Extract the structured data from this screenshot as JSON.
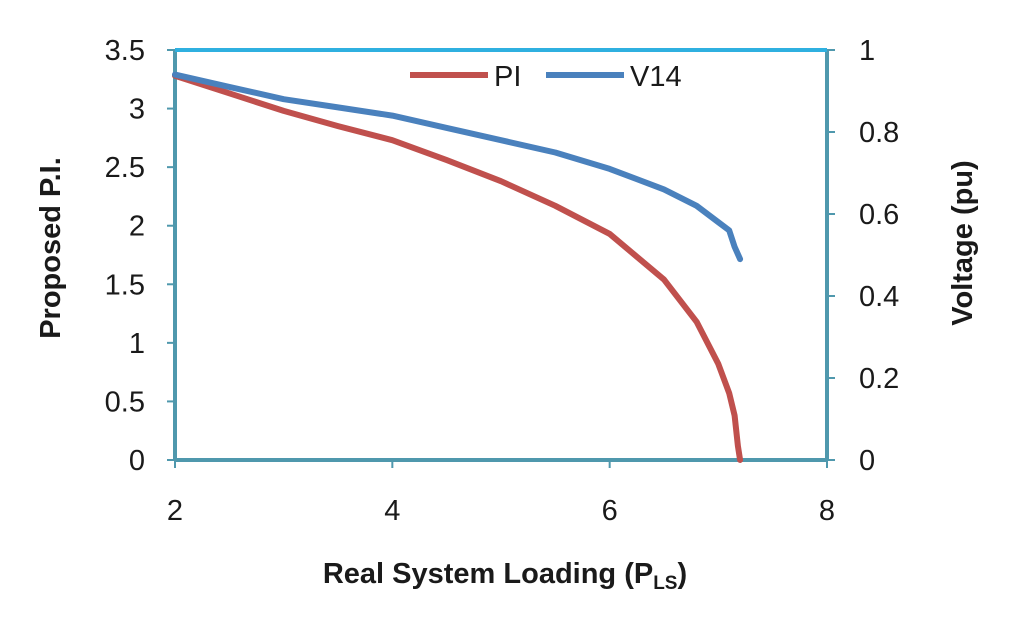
{
  "chart_data": {
    "type": "line",
    "title": "",
    "xlabel": "Real System Loading (P",
    "xlabel_sub": "LS",
    "xlabel_suffix": ")",
    "ylabel_left": "Proposed P.I.",
    "ylabel_right": "Voltage (pu)",
    "xlim": [
      2,
      8
    ],
    "ylim_left": [
      0,
      3.5
    ],
    "ylim_right": [
      0,
      1
    ],
    "x_ticks": [
      "2",
      "4",
      "6",
      "8"
    ],
    "y_left_ticks": [
      "0",
      "0.5",
      "1",
      "1.5",
      "2",
      "2.5",
      "3",
      "3.5"
    ],
    "y_right_ticks": [
      "0",
      "0.2",
      "0.4",
      "0.6",
      "0.8",
      "1"
    ],
    "grid": false,
    "legend_position": "top-center",
    "colors": {
      "frame": "#4f98ad",
      "top_edge": "#2fb0e0",
      "PI": "#c0504d",
      "V14": "#4a81bd"
    },
    "series": [
      {
        "name": "PI",
        "axis": "left",
        "color": "#c0504d",
        "points": [
          [
            2.0,
            3.28
          ],
          [
            2.5,
            3.13
          ],
          [
            3.0,
            2.98
          ],
          [
            3.5,
            2.85
          ],
          [
            4.0,
            2.73
          ],
          [
            4.5,
            2.56
          ],
          [
            5.0,
            2.38
          ],
          [
            5.5,
            2.17
          ],
          [
            6.0,
            1.93
          ],
          [
            6.5,
            1.54
          ],
          [
            6.8,
            1.18
          ],
          [
            7.0,
            0.82
          ],
          [
            7.1,
            0.57
          ],
          [
            7.15,
            0.38
          ],
          [
            7.18,
            0.12
          ],
          [
            7.2,
            0.0
          ]
        ]
      },
      {
        "name": "V14",
        "axis": "right",
        "color": "#4a81bd",
        "points": [
          [
            2.0,
            0.94
          ],
          [
            2.5,
            0.91
          ],
          [
            3.0,
            0.88
          ],
          [
            3.5,
            0.86
          ],
          [
            4.0,
            0.84
          ],
          [
            4.5,
            0.81
          ],
          [
            5.0,
            0.78
          ],
          [
            5.5,
            0.75
          ],
          [
            6.0,
            0.71
          ],
          [
            6.5,
            0.66
          ],
          [
            6.8,
            0.62
          ],
          [
            7.0,
            0.58
          ],
          [
            7.1,
            0.56
          ],
          [
            7.15,
            0.52
          ],
          [
            7.2,
            0.49
          ]
        ]
      }
    ]
  }
}
